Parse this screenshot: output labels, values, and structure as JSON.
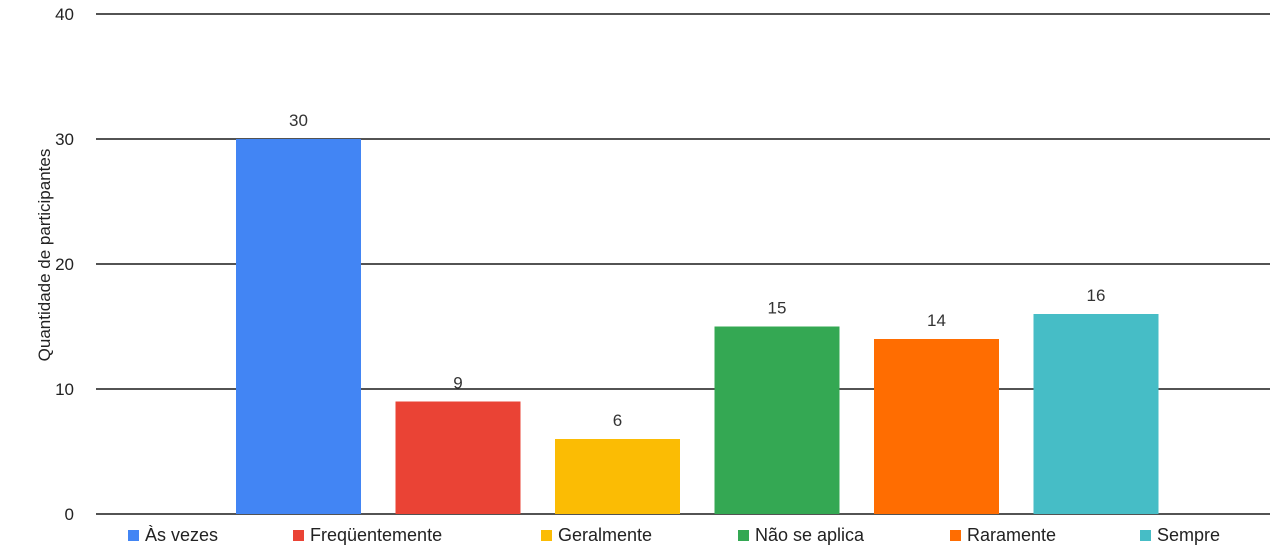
{
  "chart_data": {
    "type": "bar",
    "title": "",
    "xlabel": "",
    "ylabel": "Quantidade de participantes",
    "ylim": [
      0,
      40
    ],
    "yticks": [
      0,
      10,
      20,
      30,
      40
    ],
    "grid": true,
    "legend_position": "bottom",
    "categories": [
      "Às vezes",
      "Freqüentemente",
      "Geralmente",
      "Não se aplica",
      "Raramente",
      "Sempre"
    ],
    "values": [
      30,
      9,
      6,
      15,
      14,
      16
    ],
    "colors": [
      "#4285F4",
      "#EA4335",
      "#FBBC04",
      "#34A853",
      "#FF6D01",
      "#46BDC6"
    ],
    "data_labels": [
      "30",
      "9",
      "6",
      "15",
      "14",
      "16"
    ]
  }
}
